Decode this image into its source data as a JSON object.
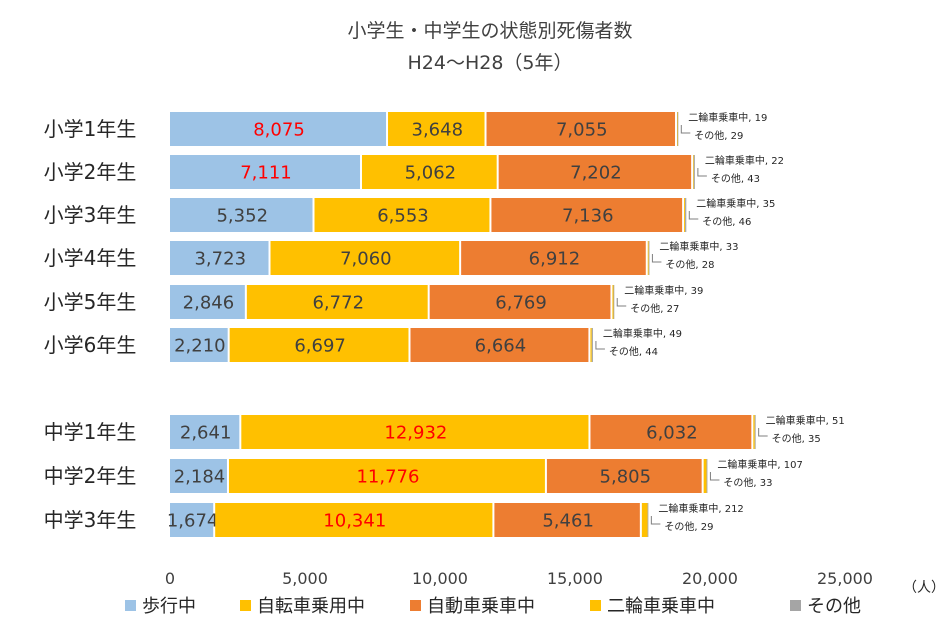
{
  "chart_data": {
    "type": "bar",
    "orientation": "horizontal",
    "stacked": true,
    "title": "小学生・中学生の状態別死傷者数",
    "subtitle": "H24〜H28（5年）",
    "unit": "（人）",
    "xlim": [
      0,
      25000
    ],
    "xticks": [
      0,
      5000,
      10000,
      15000,
      20000,
      25000
    ],
    "xtick_labels": [
      "0",
      "5,000",
      "10,000",
      "15,000",
      "20,000",
      "25,000"
    ],
    "grid": false,
    "legend_position": "bottom",
    "categories": [
      "小学1年生",
      "小学2年生",
      "小学3年生",
      "小学4年生",
      "小学5年生",
      "小学6年生",
      "中学1年生",
      "中学2年生",
      "中学3年生"
    ],
    "series": [
      {
        "name": "歩行中",
        "color": "#9DC3E6",
        "values": [
          8075,
          7111,
          5352,
          3723,
          2846,
          2210,
          2641,
          2184,
          1674
        ],
        "labels": [
          "8,075",
          "7,111",
          "5,352",
          "3,723",
          "2,846",
          "2,210",
          "2,641",
          "2,184",
          "1,674"
        ]
      },
      {
        "name": "自転車乗用中",
        "color": "#FFC000",
        "values": [
          3648,
          5062,
          6553,
          7060,
          6772,
          6697,
          12932,
          11776,
          10341
        ],
        "labels": [
          "3,648",
          "5,062",
          "6,553",
          "7,060",
          "6,772",
          "6,697",
          "12,932",
          "11,776",
          "10,341"
        ]
      },
      {
        "name": "自動車乗車中",
        "color": "#ED7D31",
        "values": [
          7055,
          7202,
          7136,
          6912,
          6769,
          6664,
          6032,
          5805,
          5461
        ],
        "labels": [
          "7,055",
          "7,202",
          "7,136",
          "6,912",
          "6,769",
          "6,664",
          "6,032",
          "5,805",
          "5,461"
        ]
      },
      {
        "name": "二輪車乗車中",
        "color": "#FFC000",
        "values": [
          19,
          22,
          35,
          33,
          39,
          49,
          51,
          107,
          212
        ]
      },
      {
        "name": "その他",
        "color": "#A5A5A5",
        "values": [
          29,
          43,
          46,
          28,
          27,
          44,
          35,
          33,
          29
        ]
      }
    ],
    "annotation_prefix_motorcycle": "二輪車乗車中,",
    "annotation_prefix_other": "その他,",
    "highlight_color": "#FF0000",
    "highlighted": [
      {
        "category": 0,
        "series": 0
      },
      {
        "category": 1,
        "series": 0
      },
      {
        "category": 6,
        "series": 1
      },
      {
        "category": 7,
        "series": 1
      },
      {
        "category": 8,
        "series": 1
      }
    ]
  }
}
